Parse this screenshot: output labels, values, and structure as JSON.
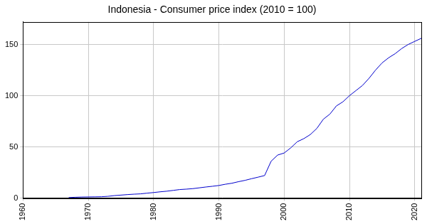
{
  "chart_data": {
    "type": "line",
    "title": "Indonesia - Consumer price index (2010 = 100)",
    "x": [
      1967,
      1968,
      1969,
      1970,
      1971,
      1972,
      1973,
      1974,
      1975,
      1976,
      1977,
      1978,
      1979,
      1980,
      1981,
      1982,
      1983,
      1984,
      1985,
      1986,
      1987,
      1988,
      1989,
      1990,
      1991,
      1992,
      1993,
      1994,
      1995,
      1996,
      1997,
      1998,
      1999,
      2000,
      2001,
      2002,
      2003,
      2004,
      2005,
      2006,
      2007,
      2008,
      2009,
      2010,
      2011,
      2012,
      2013,
      2014,
      2015,
      2016,
      2017,
      2018,
      2019,
      2020,
      2021
    ],
    "values": [
      0.5,
      0.8,
      1.0,
      1.1,
      1.2,
      1.3,
      1.7,
      2.4,
      2.9,
      3.4,
      3.8,
      4.1,
      4.8,
      5.4,
      6.1,
      6.7,
      7.5,
      8.3,
      8.7,
      9.2,
      10.0,
      10.8,
      11.5,
      12.3,
      13.5,
      14.5,
      16.0,
      17.3,
      18.9,
      20.4,
      22.0,
      36.0,
      42.0,
      44.0,
      49.0,
      55.0,
      58.0,
      62.0,
      68.0,
      77.0,
      82.0,
      90.0,
      94.0,
      100.0,
      105.0,
      110.0,
      117.0,
      125.0,
      132.0,
      137.0,
      141.0,
      146.0,
      150.0,
      153.0,
      156.0
    ],
    "color": "#0000cc",
    "xlim": [
      1960,
      2021
    ],
    "xticks": [
      1960,
      1970,
      1980,
      1990,
      2000,
      2010,
      2020
    ],
    "ylim": [
      0,
      172
    ],
    "yticks": [
      0,
      50,
      100,
      150
    ],
    "grid": true
  }
}
